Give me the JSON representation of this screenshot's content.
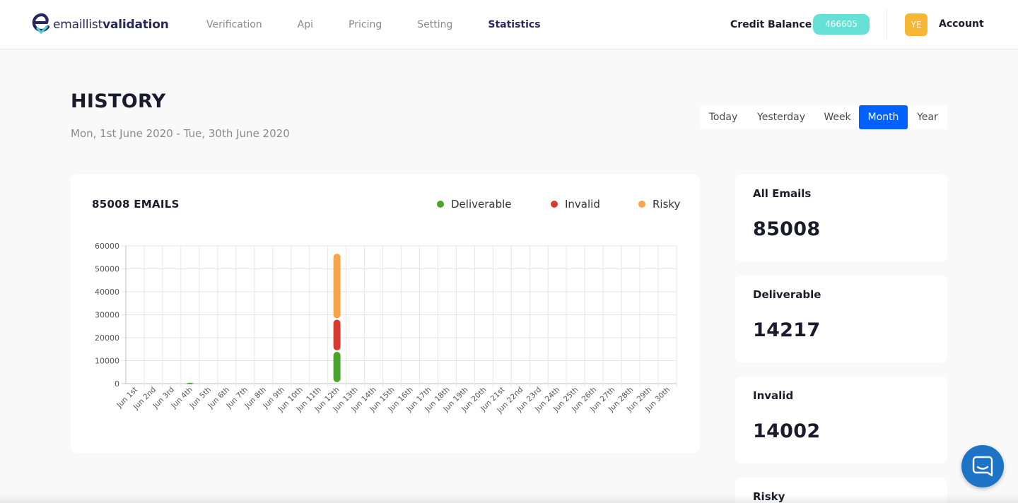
{
  "header": {
    "logo": {
      "prefix": "emaillist",
      "suffix": "validation",
      "icon": "logo-e-check-icon",
      "color": "#2a2660",
      "check_color": "#4fd1c5"
    },
    "nav": [
      {
        "label": "Verification",
        "active": false
      },
      {
        "label": "Api",
        "active": false
      },
      {
        "label": "Pricing",
        "active": false
      },
      {
        "label": "Setting",
        "active": false
      },
      {
        "label": "Statistics",
        "active": true
      }
    ],
    "credit_label": "Credit Balance",
    "credit_value": "466605",
    "credit_color": "#64e0d6",
    "avatar_initials": "YE",
    "avatar_color": "#f7b733",
    "account_label": "Account"
  },
  "history": {
    "title": "HISTORY",
    "date_range": "Mon, 1st June 2020 - Tue, 30th June 2020",
    "range_tabs": [
      {
        "label": "Today",
        "active": false
      },
      {
        "label": "Yesterday",
        "active": false
      },
      {
        "label": "Week",
        "active": false
      },
      {
        "label": "Month",
        "active": true
      },
      {
        "label": "Year",
        "active": false
      }
    ],
    "active_color": "#0061ff"
  },
  "chart_card": {
    "title": "85008 EMAILS",
    "legend": [
      {
        "name": "Deliverable",
        "color": "#4aa42b"
      },
      {
        "name": "Invalid",
        "color": "#d73b30"
      },
      {
        "name": "Risky",
        "color": "#f7a44a"
      }
    ]
  },
  "chart_data": {
    "type": "bar",
    "stacked": true,
    "title": "",
    "xlabel": "",
    "ylabel": "",
    "ylim": [
      0,
      60000
    ],
    "yticks": [
      0,
      10000,
      20000,
      30000,
      40000,
      50000,
      60000
    ],
    "grid": true,
    "legend_position": "top-right",
    "categories": [
      "Jun 1st",
      "Jun 2nd",
      "Jun 3rd",
      "Jun 4th",
      "Jun 5th",
      "Jun 6th",
      "Jun 7th",
      "Jun 8th",
      "Jun 9th",
      "Jun 10th",
      "Jun 11th",
      "Jun 12th",
      "Jun 13th",
      "Jun 14th",
      "Jun 15th",
      "Jun 16th",
      "Jun 17th",
      "Jun 18th",
      "Jun 19th",
      "Jun 20th",
      "Jun 21st",
      "Jun 22nd",
      "Jun 23rd",
      "Jun 24th",
      "Jun 25th",
      "Jun 26th",
      "Jun 27th",
      "Jun 28th",
      "Jun 29th",
      "Jun 30th"
    ],
    "series": [
      {
        "name": "Deliverable",
        "color": "#4aa42b",
        "values": [
          0,
          0,
          0,
          370,
          0,
          0,
          0,
          0,
          0,
          0,
          0,
          13847,
          0,
          0,
          0,
          0,
          0,
          0,
          0,
          0,
          0,
          0,
          0,
          0,
          0,
          0,
          0,
          0,
          0,
          0
        ]
      },
      {
        "name": "Invalid",
        "color": "#d73b30",
        "values": [
          0,
          0,
          0,
          0,
          0,
          0,
          0,
          0,
          0,
          0,
          0,
          14002,
          0,
          0,
          0,
          0,
          0,
          0,
          0,
          0,
          0,
          0,
          0,
          0,
          0,
          0,
          0,
          0,
          0,
          0
        ]
      },
      {
        "name": "Risky",
        "color": "#f7a44a",
        "values": [
          0,
          0,
          0,
          0,
          0,
          0,
          0,
          0,
          0,
          0,
          0,
          28700,
          0,
          0,
          0,
          0,
          0,
          0,
          0,
          0,
          0,
          0,
          0,
          0,
          0,
          0,
          0,
          0,
          0,
          0
        ]
      }
    ]
  },
  "stats": [
    {
      "label": "All Emails",
      "value": "85008"
    },
    {
      "label": "Deliverable",
      "value": "14217"
    },
    {
      "label": "Invalid",
      "value": "14002"
    },
    {
      "label": "Risky",
      "value": ""
    }
  ],
  "chat": {
    "icon": "chat-bubble-icon",
    "color": "#1d74c7"
  }
}
